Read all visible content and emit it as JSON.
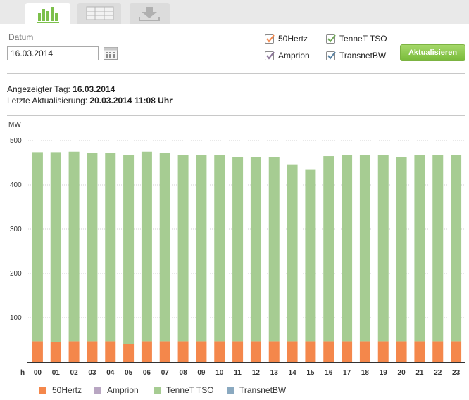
{
  "tabs": [
    {
      "icon": "bar-chart-icon",
      "active": true
    },
    {
      "icon": "table-icon",
      "active": false
    },
    {
      "icon": "download-icon",
      "active": false
    }
  ],
  "form": {
    "date_label": "Datum",
    "date_value": "16.03.2014",
    "update_button": "Aktualisieren",
    "checkboxes": [
      {
        "label": "50Hertz",
        "checked": true,
        "color": "#f4874b"
      },
      {
        "label": "Amprion",
        "checked": true,
        "color": "#b8a6c2"
      },
      {
        "label": "TenneT TSO",
        "checked": true,
        "color": "#a6cc92"
      },
      {
        "label": "TransnetBW",
        "checked": true,
        "color": "#8aa9c0"
      }
    ]
  },
  "info": {
    "shown_day_label": "Angezeigter Tag:",
    "shown_day_value": "16.03.2014",
    "last_update_label": "Letzte Aktualisierung:",
    "last_update_value": "20.03.2014 11:08 Uhr"
  },
  "chart_data": {
    "type": "bar",
    "stacked": true,
    "ylabel": "MW",
    "xlabel": "h",
    "ylim": [
      0,
      500
    ],
    "yticks": [
      100,
      200,
      300,
      400,
      500
    ],
    "grid": true,
    "legend_position": "bottom",
    "categories": [
      "00",
      "01",
      "02",
      "03",
      "04",
      "05",
      "06",
      "07",
      "08",
      "09",
      "10",
      "11",
      "12",
      "13",
      "14",
      "15",
      "16",
      "17",
      "18",
      "19",
      "20",
      "21",
      "22",
      "23"
    ],
    "series": [
      {
        "name": "50Hertz",
        "color": "#f4874b",
        "values": [
          47,
          45,
          47,
          47,
          47,
          41,
          47,
          47,
          47,
          47,
          47,
          47,
          47,
          47,
          47,
          47,
          47,
          47,
          47,
          47,
          47,
          47,
          47,
          47
        ]
      },
      {
        "name": "Amprion",
        "color": "#b8a6c2",
        "values": [
          0,
          0,
          0,
          0,
          0,
          0,
          0,
          0,
          0,
          0,
          0,
          0,
          0,
          0,
          0,
          0,
          0,
          0,
          0,
          0,
          0,
          0,
          0,
          0
        ]
      },
      {
        "name": "TenneT TSO",
        "color": "#a6cc92",
        "values": [
          427,
          429,
          428,
          426,
          426,
          426,
          428,
          426,
          421,
          421,
          421,
          415,
          415,
          415,
          398,
          387,
          418,
          421,
          421,
          421,
          416,
          421,
          421,
          420
        ]
      },
      {
        "name": "TransnetBW",
        "color": "#8aa9c0",
        "values": [
          0,
          0,
          0,
          0,
          0,
          0,
          0,
          0,
          0,
          0,
          0,
          0,
          0,
          0,
          0,
          0,
          0,
          0,
          0,
          0,
          0,
          0,
          0,
          0
        ]
      }
    ]
  }
}
